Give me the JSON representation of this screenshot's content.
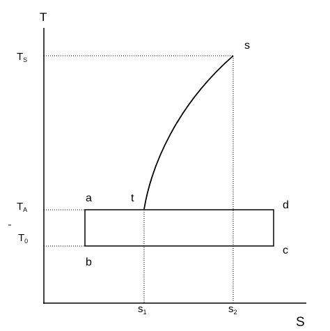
{
  "axes": {
    "y_label": "T",
    "x_label": "S"
  },
  "y_ticks": [
    {
      "main": "T",
      "sub": "S"
    },
    {
      "main": "T",
      "sub": "A"
    },
    {
      "main": "T",
      "sub": "0"
    }
  ],
  "x_ticks": [
    {
      "main": "s",
      "sub": "1"
    },
    {
      "main": "s",
      "sub": "2"
    }
  ],
  "points": {
    "a": "a",
    "b": "b",
    "c": "c",
    "d": "d",
    "t": "t",
    "s": "s"
  }
}
